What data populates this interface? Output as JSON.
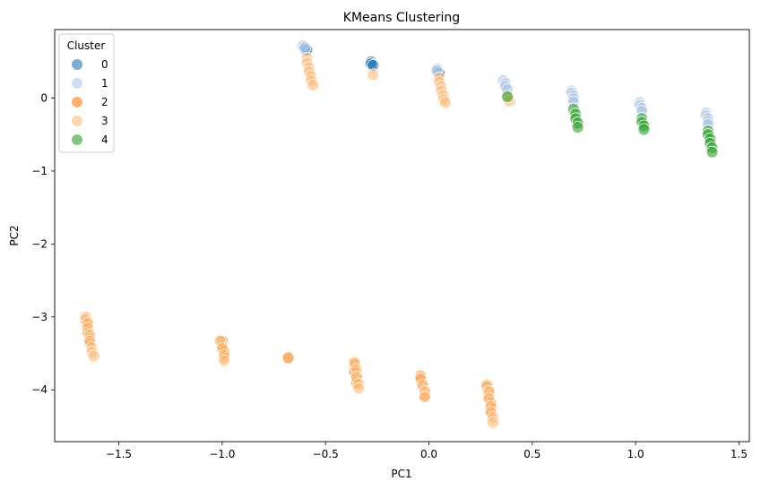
{
  "chart_data": {
    "type": "scatter",
    "title": "KMeans Clustering",
    "xlabel": "PC1",
    "ylabel": "PC2",
    "xlim": [
      -1.81,
      1.55
    ],
    "ylim": [
      -4.71,
      0.94
    ],
    "xticks": [
      -1.5,
      -1.0,
      -0.5,
      0.0,
      0.5,
      1.0,
      1.5
    ],
    "xtick_labels": [
      "−1.5",
      "−1.0",
      "−0.5",
      "0.0",
      "0.5",
      "1.0",
      "1.5"
    ],
    "yticks": [
      0,
      -1,
      -2,
      -3,
      -4
    ],
    "ytick_labels": [
      "0",
      "−1",
      "−2",
      "−3",
      "−4"
    ],
    "grid": false,
    "legend": {
      "title": "Cluster",
      "position": "top-left"
    },
    "series": [
      {
        "name": "0",
        "color": "#1f77b4",
        "alpha": 0.6,
        "points": [
          [
            -0.6,
            0.7
          ],
          [
            -0.6,
            0.67
          ],
          [
            -0.59,
            0.66
          ],
          [
            -0.28,
            0.5
          ],
          [
            -0.28,
            0.47
          ],
          [
            -0.27,
            0.45
          ],
          [
            0.04,
            0.38
          ],
          [
            0.05,
            0.36
          ],
          [
            0.05,
            0.34
          ]
        ]
      },
      {
        "name": "1",
        "color": "#aec7e8",
        "alpha": 0.6,
        "points": [
          [
            -0.61,
            0.72
          ],
          [
            -0.6,
            0.69
          ],
          [
            0.04,
            0.4
          ],
          [
            0.04,
            0.37
          ],
          [
            0.36,
            0.24
          ],
          [
            0.37,
            0.2
          ],
          [
            0.37,
            0.16
          ],
          [
            0.38,
            0.12
          ],
          [
            0.69,
            0.1
          ],
          [
            0.69,
            0.07
          ],
          [
            0.7,
            0.03
          ],
          [
            0.7,
            -0.01
          ],
          [
            0.7,
            -0.05
          ],
          [
            1.02,
            -0.06
          ],
          [
            1.02,
            -0.1
          ],
          [
            1.03,
            -0.14
          ],
          [
            1.03,
            -0.18
          ],
          [
            1.34,
            -0.2
          ],
          [
            1.34,
            -0.24
          ],
          [
            1.35,
            -0.28
          ],
          [
            1.35,
            -0.32
          ],
          [
            1.35,
            -0.36
          ]
        ]
      },
      {
        "name": "2",
        "color": "#ff7f0e",
        "alpha": 0.6,
        "points": [
          [
            -1.66,
            -3.05
          ],
          [
            -1.65,
            -3.1
          ],
          [
            -1.65,
            -3.22
          ],
          [
            -1.64,
            -3.3
          ],
          [
            -1.64,
            -3.36
          ],
          [
            -1.0,
            -3.33
          ],
          [
            -1.0,
            -3.4
          ],
          [
            -0.99,
            -3.47
          ],
          [
            -0.99,
            -3.55
          ],
          [
            -0.68,
            -3.56
          ],
          [
            -0.36,
            -3.65
          ],
          [
            -0.36,
            -3.75
          ],
          [
            -0.35,
            -3.82
          ],
          [
            -0.35,
            -3.9
          ],
          [
            -0.04,
            -3.81
          ],
          [
            -0.04,
            -3.86
          ],
          [
            -0.03,
            -3.95
          ],
          [
            -0.02,
            -4.04
          ],
          [
            -0.02,
            -4.08
          ],
          [
            0.28,
            -3.96
          ],
          [
            0.29,
            -4.03
          ],
          [
            0.29,
            -4.1
          ],
          [
            0.3,
            -4.18
          ],
          [
            0.3,
            -4.25
          ],
          [
            0.3,
            -4.32
          ]
        ]
      },
      {
        "name": "3",
        "color": "#ffbb78",
        "alpha": 0.6,
        "points": [
          [
            -0.59,
            0.55
          ],
          [
            -0.59,
            0.48
          ],
          [
            -0.58,
            0.42
          ],
          [
            -0.58,
            0.36
          ],
          [
            -0.57,
            0.3
          ],
          [
            -0.57,
            0.24
          ],
          [
            -0.56,
            0.18
          ],
          [
            -0.27,
            0.32
          ],
          [
            0.05,
            0.28
          ],
          [
            0.05,
            0.22
          ],
          [
            0.06,
            0.16
          ],
          [
            0.06,
            0.1
          ],
          [
            0.07,
            0.04
          ],
          [
            0.07,
            -0.02
          ],
          [
            0.08,
            -0.06
          ],
          [
            0.38,
            0.02
          ],
          [
            0.39,
            -0.04
          ],
          [
            -1.66,
            -3.0
          ],
          [
            -1.65,
            -3.08
          ],
          [
            -1.65,
            -3.15
          ],
          [
            -1.64,
            -3.25
          ],
          [
            -1.64,
            -3.33
          ],
          [
            -1.63,
            -3.42
          ],
          [
            -1.63,
            -3.48
          ],
          [
            -1.62,
            -3.54
          ],
          [
            -1.01,
            -3.33
          ],
          [
            -1.0,
            -3.43
          ],
          [
            -0.99,
            -3.52
          ],
          [
            -0.99,
            -3.6
          ],
          [
            -0.36,
            -3.62
          ],
          [
            -0.35,
            -3.72
          ],
          [
            -0.35,
            -3.83
          ],
          [
            -0.34,
            -3.92
          ],
          [
            -0.34,
            -3.98
          ],
          [
            -0.04,
            -3.84
          ],
          [
            -0.03,
            -3.93
          ],
          [
            -0.02,
            -4.02
          ],
          [
            -0.02,
            -4.1
          ],
          [
            0.28,
            -3.93
          ],
          [
            0.29,
            -4.02
          ],
          [
            0.29,
            -4.12
          ],
          [
            0.3,
            -4.22
          ],
          [
            0.3,
            -4.3
          ],
          [
            0.31,
            -4.38
          ],
          [
            0.31,
            -4.45
          ]
        ]
      },
      {
        "name": "4",
        "color": "#2ca02c",
        "alpha": 0.6,
        "points": [
          [
            0.38,
            0.02
          ],
          [
            0.7,
            -0.15
          ],
          [
            0.71,
            -0.22
          ],
          [
            0.71,
            -0.28
          ],
          [
            0.72,
            -0.34
          ],
          [
            0.72,
            -0.4
          ],
          [
            1.03,
            -0.28
          ],
          [
            1.03,
            -0.33
          ],
          [
            1.04,
            -0.38
          ],
          [
            1.04,
            -0.43
          ],
          [
            1.35,
            -0.45
          ],
          [
            1.35,
            -0.5
          ],
          [
            1.36,
            -0.56
          ],
          [
            1.36,
            -0.62
          ],
          [
            1.37,
            -0.68
          ],
          [
            1.37,
            -0.74
          ]
        ]
      }
    ]
  }
}
